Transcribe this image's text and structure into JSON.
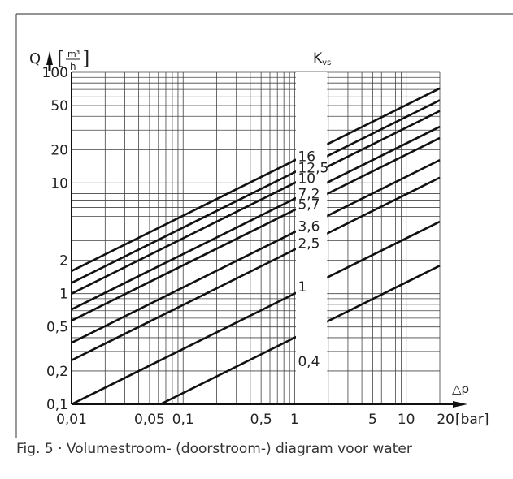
{
  "figure": {
    "caption": "Fig. 5 · Volumestroom- (doorstroom-) diagram voor water"
  },
  "chart_data": {
    "type": "line",
    "title": "",
    "x_scale": "log",
    "y_scale": "log",
    "xlim": [
      0.01,
      20
    ],
    "ylim": [
      0.1,
      100
    ],
    "grid": true,
    "xlabel": "△p",
    "xlabel_unit": "[bar]",
    "ylabel": "Q",
    "ylabel_unit_num": "m³",
    "ylabel_unit_den": "h",
    "series_label_header": "Kvs",
    "x_ticks": [
      {
        "value": 0.01,
        "label": "0,01"
      },
      {
        "value": 0.05,
        "label": "0,05"
      },
      {
        "value": 0.1,
        "label": "0,1"
      },
      {
        "value": 0.5,
        "label": "0,5"
      },
      {
        "value": 1,
        "label": "1"
      },
      {
        "value": 5,
        "label": "5"
      },
      {
        "value": 10,
        "label": "10"
      },
      {
        "value": 20,
        "label": "20"
      }
    ],
    "y_ticks": [
      {
        "value": 0.1,
        "label": "0,1"
      },
      {
        "value": 0.2,
        "label": "0,2"
      },
      {
        "value": 0.5,
        "label": "0,5"
      },
      {
        "value": 1,
        "label": "1"
      },
      {
        "value": 2,
        "label": "2"
      },
      {
        "value": 10,
        "label": "10"
      },
      {
        "value": 20,
        "label": "20"
      },
      {
        "value": 50,
        "label": "50"
      },
      {
        "value": 100,
        "label": "100"
      }
    ],
    "grid_x": [
      0.01,
      0.02,
      0.03,
      0.04,
      0.05,
      0.06,
      0.07,
      0.08,
      0.09,
      0.1,
      0.2,
      0.3,
      0.4,
      0.5,
      0.6,
      0.7,
      0.8,
      0.9,
      1,
      2,
      3,
      4,
      5,
      6,
      7,
      8,
      9,
      10,
      20
    ],
    "grid_y": [
      0.1,
      0.2,
      0.3,
      0.4,
      0.5,
      0.6,
      0.7,
      0.8,
      0.9,
      1,
      2,
      3,
      4,
      5,
      6,
      7,
      8,
      9,
      10,
      20,
      30,
      40,
      50,
      60,
      70,
      80,
      90,
      100
    ],
    "gap": [
      1,
      2
    ],
    "series": [
      {
        "name": "16",
        "kvs": 16
      },
      {
        "name": "12,5",
        "kvs": 12.5
      },
      {
        "name": "10",
        "kvs": 10
      },
      {
        "name": "7,2",
        "kvs": 7.2
      },
      {
        "name": "5,7",
        "kvs": 5.7
      },
      {
        "name": "3,6",
        "kvs": 3.6
      },
      {
        "name": "2,5",
        "kvs": 2.5
      },
      {
        "name": "1",
        "kvs": 1
      },
      {
        "name": "0,4",
        "kvs": 0.4
      }
    ]
  }
}
